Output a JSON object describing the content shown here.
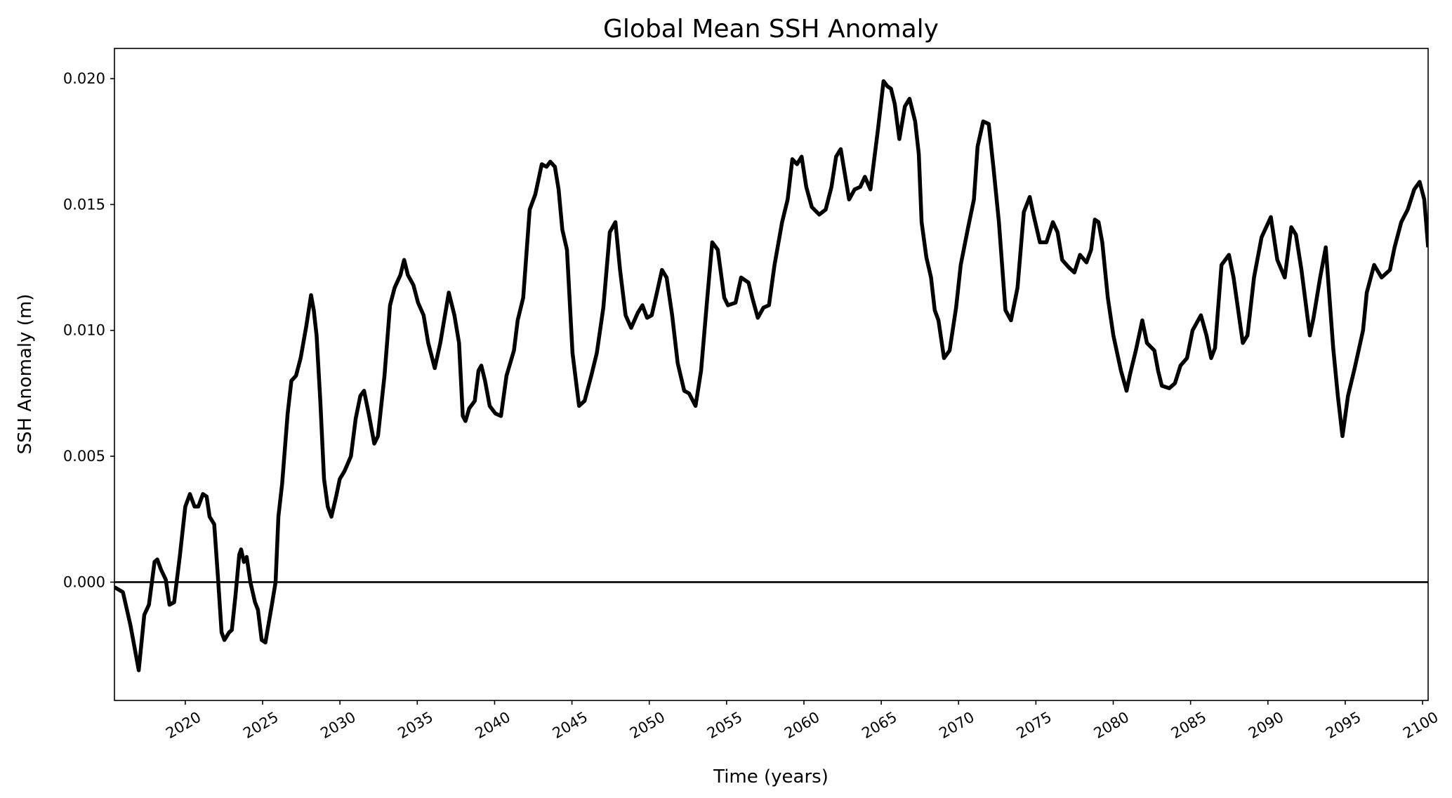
{
  "chart_data": {
    "type": "line",
    "title": "Global Mean SSH Anomaly",
    "xlabel": "Time (years)",
    "ylabel": "SSH Anomaly (m)",
    "xlim": [
      2015.42,
      2100.36
    ],
    "ylim": [
      -0.0047,
      0.0212
    ],
    "xticks": [
      2020,
      2025,
      2030,
      2035,
      2040,
      2045,
      2050,
      2055,
      2060,
      2065,
      2070,
      2075,
      2080,
      2085,
      2090,
      2095,
      2100
    ],
    "xtick_labels": [
      "2020",
      "2025",
      "2030",
      "2035",
      "2040",
      "2045",
      "2050",
      "2055",
      "2060",
      "2065",
      "2070",
      "2075",
      "2080",
      "2085",
      "2090",
      "2095",
      "2100"
    ],
    "yticks": [
      0.0,
      0.005,
      0.01,
      0.015,
      0.02
    ],
    "ytick_labels": [
      "0.000",
      "0.005",
      "0.010",
      "0.015",
      "0.020"
    ],
    "grid": false,
    "reference_line": {
      "y": 0.0,
      "color": "#000000"
    },
    "series": [
      {
        "color": "#000000",
        "x": [
          2015.42,
          2015.97,
          2016.45,
          2016.99,
          2017.35,
          2017.65,
          2018.01,
          2018.19,
          2018.43,
          2018.74,
          2018.98,
          2019.28,
          2019.64,
          2020.0,
          2020.3,
          2020.6,
          2020.84,
          2021.14,
          2021.38,
          2021.57,
          2021.87,
          2022.11,
          2022.35,
          2022.53,
          2022.83,
          2023.01,
          2023.25,
          2023.49,
          2023.61,
          2023.79,
          2023.97,
          2024.21,
          2024.51,
          2024.7,
          2024.94,
          2025.18,
          2025.6,
          2025.84,
          2026.02,
          2026.26,
          2026.62,
          2026.86,
          2027.16,
          2027.46,
          2027.83,
          2028.13,
          2028.31,
          2028.49,
          2028.73,
          2028.97,
          2029.21,
          2029.45,
          2029.75,
          2029.99,
          2030.29,
          2030.71,
          2031.02,
          2031.32,
          2031.56,
          2031.86,
          2032.22,
          2032.46,
          2032.88,
          2033.24,
          2033.54,
          2033.91,
          2034.15,
          2034.39,
          2034.75,
          2035.05,
          2035.41,
          2035.71,
          2036.13,
          2036.49,
          2037.04,
          2037.4,
          2037.7,
          2037.94,
          2038.12,
          2038.36,
          2038.72,
          2038.96,
          2039.14,
          2039.38,
          2039.68,
          2040.05,
          2040.41,
          2040.77,
          2041.25,
          2041.49,
          2041.85,
          2042.27,
          2042.63,
          2043.05,
          2043.36,
          2043.6,
          2043.9,
          2044.14,
          2044.38,
          2044.68,
          2045.04,
          2045.46,
          2045.82,
          2046.25,
          2046.61,
          2047.03,
          2047.45,
          2047.81,
          2048.11,
          2048.47,
          2048.83,
          2049.26,
          2049.56,
          2049.86,
          2050.16,
          2050.46,
          2050.82,
          2051.12,
          2051.48,
          2051.84,
          2052.26,
          2052.57,
          2052.99,
          2053.35,
          2053.77,
          2054.07,
          2054.43,
          2054.85,
          2055.09,
          2055.58,
          2055.94,
          2056.42,
          2056.66,
          2057.02,
          2057.38,
          2057.74,
          2058.1,
          2058.59,
          2058.95,
          2059.25,
          2059.55,
          2059.85,
          2060.15,
          2060.51,
          2060.99,
          2061.41,
          2061.78,
          2062.08,
          2062.38,
          2062.92,
          2063.28,
          2063.64,
          2063.94,
          2064.3,
          2064.79,
          2065.15,
          2065.39,
          2065.63,
          2065.87,
          2066.17,
          2066.53,
          2066.83,
          2067.19,
          2067.43,
          2067.61,
          2067.92,
          2068.22,
          2068.46,
          2068.7,
          2069.06,
          2069.42,
          2069.84,
          2070.14,
          2070.62,
          2070.99,
          2071.23,
          2071.59,
          2071.95,
          2072.25,
          2072.61,
          2073.03,
          2073.39,
          2073.81,
          2074.22,
          2074.6,
          2074.84,
          2075.26,
          2075.68,
          2076.1,
          2076.4,
          2076.7,
          2077.13,
          2077.49,
          2077.85,
          2078.27,
          2078.57,
          2078.81,
          2079.05,
          2079.29,
          2079.65,
          2080.01,
          2080.5,
          2080.86,
          2081.1,
          2081.46,
          2081.88,
          2082.18,
          2082.66,
          2082.9,
          2083.14,
          2083.62,
          2083.99,
          2084.35,
          2084.77,
          2085.13,
          2085.67,
          2086.03,
          2086.33,
          2086.58,
          2087.0,
          2087.48,
          2087.78,
          2088.38,
          2088.68,
          2089.1,
          2089.59,
          2090.19,
          2090.61,
          2091.09,
          2091.51,
          2091.81,
          2092.17,
          2092.71,
          2092.95,
          2093.38,
          2093.74,
          2093.98,
          2094.22,
          2094.52,
          2094.82,
          2095.18,
          2095.61,
          2096.15,
          2096.39,
          2096.87,
          2097.35,
          2097.89,
          2098.19,
          2098.62,
          2099.04,
          2099.46,
          2099.81,
          2100.11,
          2100.36
        ],
        "y": [
          -0.0002,
          -0.0004,
          -0.0017,
          -0.0035,
          -0.0013,
          -0.0009,
          0.0008,
          0.0009,
          0.0005,
          0.0001,
          -0.0009,
          -0.0008,
          0.001,
          0.003,
          0.0035,
          0.003,
          0.003,
          0.0035,
          0.0034,
          0.0026,
          0.0023,
          0.0002,
          -0.002,
          -0.0023,
          -0.002,
          -0.0019,
          -0.0005,
          0.0011,
          0.0013,
          0.0008,
          0.001,
          0.0,
          -0.0008,
          -0.0011,
          -0.0023,
          -0.0024,
          -0.0009,
          0.0,
          0.0026,
          0.0039,
          0.0067,
          0.008,
          0.0082,
          0.0089,
          0.0102,
          0.0114,
          0.0108,
          0.0098,
          0.0072,
          0.0041,
          0.003,
          0.0026,
          0.0034,
          0.0041,
          0.0044,
          0.005,
          0.0065,
          0.0074,
          0.0076,
          0.0067,
          0.0055,
          0.0058,
          0.0082,
          0.011,
          0.0117,
          0.0122,
          0.0128,
          0.0122,
          0.0118,
          0.0111,
          0.0106,
          0.0095,
          0.0085,
          0.0095,
          0.0115,
          0.0106,
          0.0095,
          0.0066,
          0.0064,
          0.0069,
          0.0072,
          0.0084,
          0.0086,
          0.008,
          0.007,
          0.0067,
          0.0066,
          0.0082,
          0.0092,
          0.0104,
          0.0113,
          0.0148,
          0.0154,
          0.0166,
          0.0165,
          0.0167,
          0.0165,
          0.0156,
          0.014,
          0.0132,
          0.0091,
          0.007,
          0.0072,
          0.0082,
          0.0091,
          0.0109,
          0.0139,
          0.0143,
          0.0124,
          0.0106,
          0.0101,
          0.0107,
          0.011,
          0.0105,
          0.0106,
          0.0114,
          0.0124,
          0.0121,
          0.0106,
          0.0087,
          0.0076,
          0.0075,
          0.007,
          0.0084,
          0.0114,
          0.0135,
          0.0132,
          0.0113,
          0.011,
          0.0111,
          0.0121,
          0.0119,
          0.0113,
          0.0105,
          0.0109,
          0.011,
          0.0126,
          0.0143,
          0.0152,
          0.0168,
          0.0166,
          0.0169,
          0.0157,
          0.0149,
          0.0146,
          0.0148,
          0.0157,
          0.0169,
          0.0172,
          0.0152,
          0.0156,
          0.0157,
          0.0161,
          0.0156,
          0.018,
          0.0199,
          0.0197,
          0.0196,
          0.019,
          0.0176,
          0.0189,
          0.0192,
          0.0183,
          0.017,
          0.0143,
          0.0129,
          0.0121,
          0.0108,
          0.0104,
          0.0089,
          0.0092,
          0.0109,
          0.0126,
          0.0141,
          0.0152,
          0.0173,
          0.0183,
          0.0182,
          0.0165,
          0.0143,
          0.0108,
          0.0104,
          0.0117,
          0.0147,
          0.0153,
          0.0146,
          0.0135,
          0.0135,
          0.0143,
          0.0139,
          0.0128,
          0.0125,
          0.0123,
          0.013,
          0.0127,
          0.0132,
          0.0144,
          0.0143,
          0.0135,
          0.0113,
          0.0098,
          0.0084,
          0.0076,
          0.0083,
          0.0092,
          0.0104,
          0.0095,
          0.0092,
          0.0084,
          0.0078,
          0.0077,
          0.0079,
          0.0086,
          0.0089,
          0.01,
          0.0106,
          0.0098,
          0.0089,
          0.0093,
          0.0126,
          0.013,
          0.0121,
          0.0095,
          0.0098,
          0.0121,
          0.0137,
          0.0145,
          0.0128,
          0.0121,
          0.0141,
          0.0138,
          0.0124,
          0.0098,
          0.0105,
          0.0121,
          0.0133,
          0.0113,
          0.0093,
          0.0074,
          0.0058,
          0.0074,
          0.0085,
          0.01,
          0.0115,
          0.0126,
          0.0121,
          0.0124,
          0.0133,
          0.0143,
          0.0148,
          0.0156,
          0.0159,
          0.0152,
          0.0133
        ]
      }
    ]
  }
}
